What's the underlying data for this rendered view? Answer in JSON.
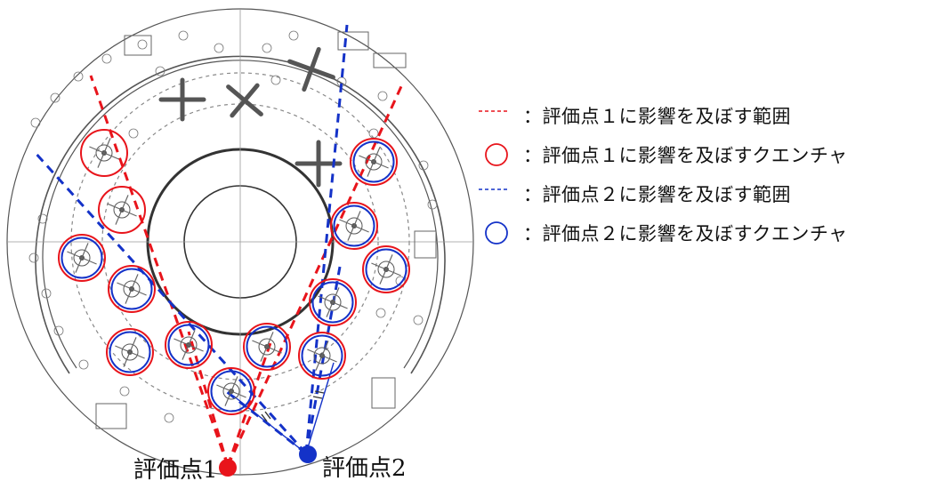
{
  "diagram": {
    "point1_label": "評価点1",
    "point2_label": "評価点2",
    "point1_color": "#e8141b",
    "point2_color": "#1432c8",
    "line_color": "#555555"
  },
  "legend": [
    {
      "symbol": "red-dashed-line",
      "color": "#e8141b",
      "text": "：評価点１に影響を及ぼす範囲"
    },
    {
      "symbol": "red-circle",
      "color": "#e8141b",
      "text": "：評価点１に影響を及ぼすクエンチャ"
    },
    {
      "symbol": "blue-dashed-line",
      "color": "#1432c8",
      "text": "：評価点２に影響を及ぼす範囲"
    },
    {
      "symbol": "blue-circle",
      "color": "#1432c8",
      "text": "：評価点２に影響を及ぼすクエンチャ"
    }
  ]
}
